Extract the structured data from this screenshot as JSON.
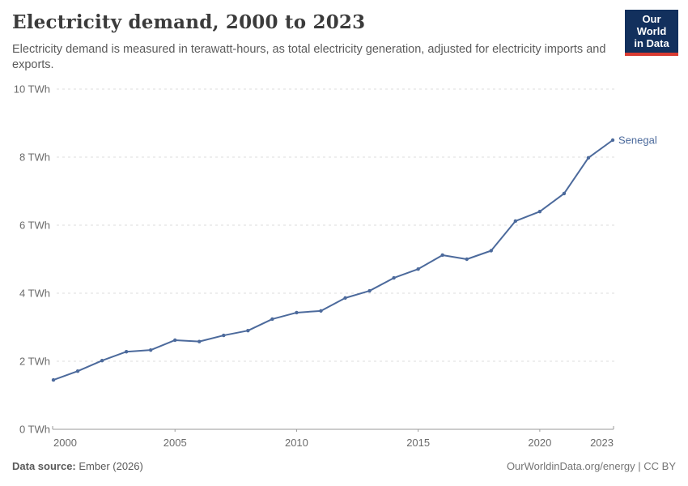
{
  "header": {
    "title": "Electricity demand, 2000 to 2023",
    "subtitle": "Electricity demand is measured in terawatt-hours, as total electricity generation, adjusted for electricity imports and exports.",
    "logo": {
      "line1": "Our World",
      "line2": "in Data",
      "bg_color": "#12305d",
      "stripe_color": "#d93b32"
    }
  },
  "chart_data": {
    "type": "line",
    "title": "Electricity demand, 2000 to 2023",
    "xlabel": "",
    "ylabel": "",
    "unit": "TWh",
    "xlim": [
      2000,
      2023
    ],
    "ylim": [
      0,
      10
    ],
    "grid": "horizontal-dashed",
    "legend_position": "end-of-line-label",
    "y_ticks": [
      {
        "value": 0,
        "label": "0 TWh"
      },
      {
        "value": 2,
        "label": "2 TWh"
      },
      {
        "value": 4,
        "label": "4 TWh"
      },
      {
        "value": 6,
        "label": "6 TWh"
      },
      {
        "value": 8,
        "label": "8 TWh"
      },
      {
        "value": 10,
        "label": "10 TWh"
      }
    ],
    "x_ticks": [
      {
        "value": 2000,
        "label": "2000",
        "align": "start"
      },
      {
        "value": 2005,
        "label": "2005",
        "align": "middle"
      },
      {
        "value": 2010,
        "label": "2010",
        "align": "middle"
      },
      {
        "value": 2015,
        "label": "2015",
        "align": "middle"
      },
      {
        "value": 2020,
        "label": "2020",
        "align": "middle"
      },
      {
        "value": 2023,
        "label": "2023",
        "align": "end"
      }
    ],
    "series": [
      {
        "name": "Senegal",
        "color": "#4c6a9c",
        "x": [
          2000,
          2001,
          2002,
          2003,
          2004,
          2005,
          2006,
          2007,
          2008,
          2009,
          2010,
          2011,
          2012,
          2013,
          2014,
          2015,
          2016,
          2017,
          2018,
          2019,
          2020,
          2021,
          2022,
          2023
        ],
        "values": [
          1.45,
          1.71,
          2.02,
          2.28,
          2.33,
          2.62,
          2.58,
          2.76,
          2.9,
          3.24,
          3.43,
          3.48,
          3.86,
          4.07,
          4.45,
          4.71,
          5.12,
          5.0,
          5.25,
          6.12,
          6.4,
          6.93,
          7.98,
          8.5
        ]
      }
    ]
  },
  "footer": {
    "source_label": "Data source:",
    "source_value": " Ember (2026)",
    "link": "OurWorldinData.org/energy | CC BY"
  },
  "colors": {
    "gridline": "#dcdcdc",
    "axis": "#9a9a9a",
    "tick_text": "#6b6b6b",
    "title_text": "#3b3b3b",
    "subtitle_text": "#5b5b5b"
  }
}
